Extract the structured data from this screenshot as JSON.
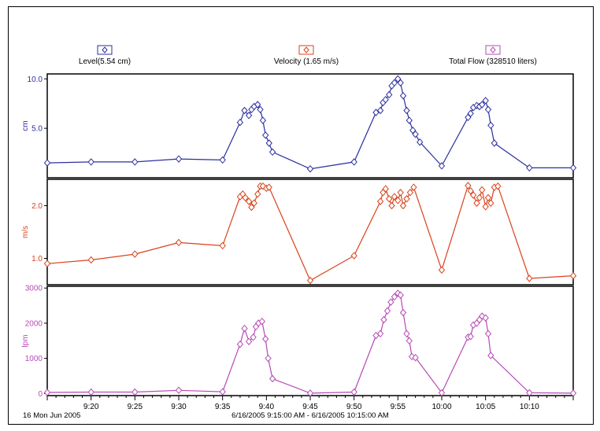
{
  "chart_data": {
    "type": "line",
    "legend": {
      "placement": "top",
      "items": [
        {
          "key": "level",
          "label": "Level(5.54 cm)"
        },
        {
          "key": "velocity",
          "label": "Velocity (1.65 m/s)"
        },
        {
          "key": "flow",
          "label": "Total Flow (328510 liters)"
        }
      ]
    },
    "x_ticks": [
      "9:20",
      "9:25",
      "9:30",
      "9:35",
      "9:40",
      "9:45",
      "9:50",
      "9:55",
      "10:00",
      "10:05",
      "10:10"
    ],
    "xlim": [
      "9:15",
      "10:15"
    ],
    "footer_left": "16 Mon Jun 2005",
    "footer_center": "6/16/2005 9:15:00 AM - 6/16/2005 10:15:00 AM",
    "grid": false,
    "panels": [
      {
        "key": "level",
        "ylabel": "cm",
        "ylim": [
          0,
          10.5
        ],
        "yticks": [
          5.0,
          10.0
        ],
        "ytick_labels": [
          "5.0",
          "10.0"
        ],
        "color": "#2b2f9e",
        "points": [
          [
            "9:15",
            1.5
          ],
          [
            "9:20",
            1.6
          ],
          [
            "9:25",
            1.6
          ],
          [
            "9:30",
            1.9
          ],
          [
            "9:35",
            1.8
          ],
          [
            "9:37",
            5.6
          ],
          [
            "9:37.5",
            6.8
          ],
          [
            "9:38",
            6.3
          ],
          [
            "9:38.3",
            6.9
          ],
          [
            "9:38.6",
            7.2
          ],
          [
            "9:39",
            7.4
          ],
          [
            "9:39.3",
            6.9
          ],
          [
            "9:39.6",
            5.8
          ],
          [
            "9:39.9",
            4.3
          ],
          [
            "9:40.3",
            3.5
          ],
          [
            "9:40.7",
            2.6
          ],
          [
            "9:45",
            0.9
          ],
          [
            "9:50",
            1.6
          ],
          [
            "9:52.5",
            6.6
          ],
          [
            "9:53",
            6.8
          ],
          [
            "9:53.3",
            7.6
          ],
          [
            "9:53.6",
            7.9
          ],
          [
            "9:54",
            8.4
          ],
          [
            "9:54.3",
            9.3
          ],
          [
            "9:54.6",
            9.6
          ],
          [
            "9:55",
            10.0
          ],
          [
            "9:55.3",
            9.6
          ],
          [
            "9:55.6",
            8.3
          ],
          [
            "9:56",
            6.8
          ],
          [
            "9:56.3",
            5.8
          ],
          [
            "9:56.7",
            4.8
          ],
          [
            "9:57",
            4.4
          ],
          [
            "9:57.5",
            3.6
          ],
          [
            "10:00",
            1.2
          ],
          [
            "10:03",
            6.1
          ],
          [
            "10:03.3",
            6.5
          ],
          [
            "10:03.6",
            7.1
          ],
          [
            "10:04",
            7.3
          ],
          [
            "10:04.3",
            7.2
          ],
          [
            "10:04.6",
            7.4
          ],
          [
            "10:05",
            7.8
          ],
          [
            "10:05.3",
            6.9
          ],
          [
            "10:05.6",
            5.3
          ],
          [
            "10:06",
            3.5
          ],
          [
            "10:10",
            1.0
          ],
          [
            "10:15",
            1.0
          ]
        ]
      },
      {
        "key": "velocity",
        "ylabel": "m/s",
        "ylim": [
          0.5,
          2.5
        ],
        "yticks": [
          1.0,
          2.0
        ],
        "ytick_labels": [
          "1.0",
          "2.0"
        ],
        "color": "#d9421a",
        "points": [
          [
            "9:15",
            0.9
          ],
          [
            "9:20",
            0.97
          ],
          [
            "9:25",
            1.08
          ],
          [
            "9:30",
            1.3
          ],
          [
            "9:35",
            1.24
          ],
          [
            "9:37",
            2.17
          ],
          [
            "9:37.3",
            2.22
          ],
          [
            "9:37.6",
            2.15
          ],
          [
            "9:38",
            2.08
          ],
          [
            "9:38.3",
            1.97
          ],
          [
            "9:38.6",
            2.05
          ],
          [
            "9:39",
            2.22
          ],
          [
            "9:39.3",
            2.37
          ],
          [
            "9:39.6",
            2.37
          ],
          [
            "9:40",
            2.33
          ],
          [
            "9:40.3",
            2.35
          ],
          [
            "9:45",
            0.58
          ],
          [
            "9:50",
            1.05
          ],
          [
            "9:53",
            2.08
          ],
          [
            "9:53.3",
            2.25
          ],
          [
            "9:53.6",
            2.32
          ],
          [
            "9:54",
            2.13
          ],
          [
            "9:54.3",
            2.0
          ],
          [
            "9:54.6",
            2.17
          ],
          [
            "9:55",
            2.1
          ],
          [
            "9:55.3",
            2.25
          ],
          [
            "9:55.6",
            2.0
          ],
          [
            "9:56",
            2.13
          ],
          [
            "9:56.4",
            2.25
          ],
          [
            "9:56.8",
            2.35
          ],
          [
            "10:00",
            0.78
          ],
          [
            "10:03",
            2.38
          ],
          [
            "10:03.3",
            2.28
          ],
          [
            "10:03.6",
            2.2
          ],
          [
            "10:04",
            2.05
          ],
          [
            "10:04.3",
            2.15
          ],
          [
            "10:04.6",
            2.3
          ],
          [
            "10:05",
            1.98
          ],
          [
            "10:05.3",
            2.15
          ],
          [
            "10:05.6",
            2.05
          ],
          [
            "10:06",
            2.35
          ],
          [
            "10:06.4",
            2.37
          ],
          [
            "10:10",
            0.62
          ],
          [
            "10:15",
            0.67
          ]
        ]
      },
      {
        "key": "flow",
        "ylabel": "lpm",
        "ylim": [
          -60,
          3050
        ],
        "yticks": [
          0,
          1000,
          2000,
          3000
        ],
        "ytick_labels": [
          "0",
          "1000",
          "2000",
          "3000"
        ],
        "color": "#b74ab5",
        "points": [
          [
            "9:15",
            30
          ],
          [
            "9:20",
            40
          ],
          [
            "9:25",
            40
          ],
          [
            "9:30",
            90
          ],
          [
            "9:35",
            50
          ],
          [
            "9:37",
            1400
          ],
          [
            "9:37.5",
            1850
          ],
          [
            "9:38",
            1480
          ],
          [
            "9:38.5",
            1600
          ],
          [
            "9:38.8",
            1900
          ],
          [
            "9:39.1",
            2000
          ],
          [
            "9:39.5",
            2050
          ],
          [
            "9:39.9",
            1550
          ],
          [
            "9:40.2",
            1000
          ],
          [
            "9:40.7",
            420
          ],
          [
            "9:45",
            10
          ],
          [
            "9:50",
            40
          ],
          [
            "9:52.5",
            1650
          ],
          [
            "9:53",
            1700
          ],
          [
            "9:53.4",
            2100
          ],
          [
            "9:53.8",
            2350
          ],
          [
            "9:54.2",
            2600
          ],
          [
            "9:54.6",
            2750
          ],
          [
            "9:55",
            2850
          ],
          [
            "9:55.3",
            2800
          ],
          [
            "9:55.6",
            2300
          ],
          [
            "9:56",
            1700
          ],
          [
            "9:56.3",
            1500
          ],
          [
            "9:56.6",
            1050
          ],
          [
            "9:57",
            1020
          ],
          [
            "10:00",
            20
          ],
          [
            "10:03",
            1600
          ],
          [
            "10:03.3",
            1620
          ],
          [
            "10:03.6",
            1950
          ],
          [
            "10:04",
            2000
          ],
          [
            "10:04.3",
            2100
          ],
          [
            "10:04.6",
            2200
          ],
          [
            "10:05",
            2150
          ],
          [
            "10:05.3",
            1700
          ],
          [
            "10:05.6",
            1080
          ],
          [
            "10:10",
            20
          ],
          [
            "10:15",
            10
          ]
        ]
      }
    ]
  }
}
